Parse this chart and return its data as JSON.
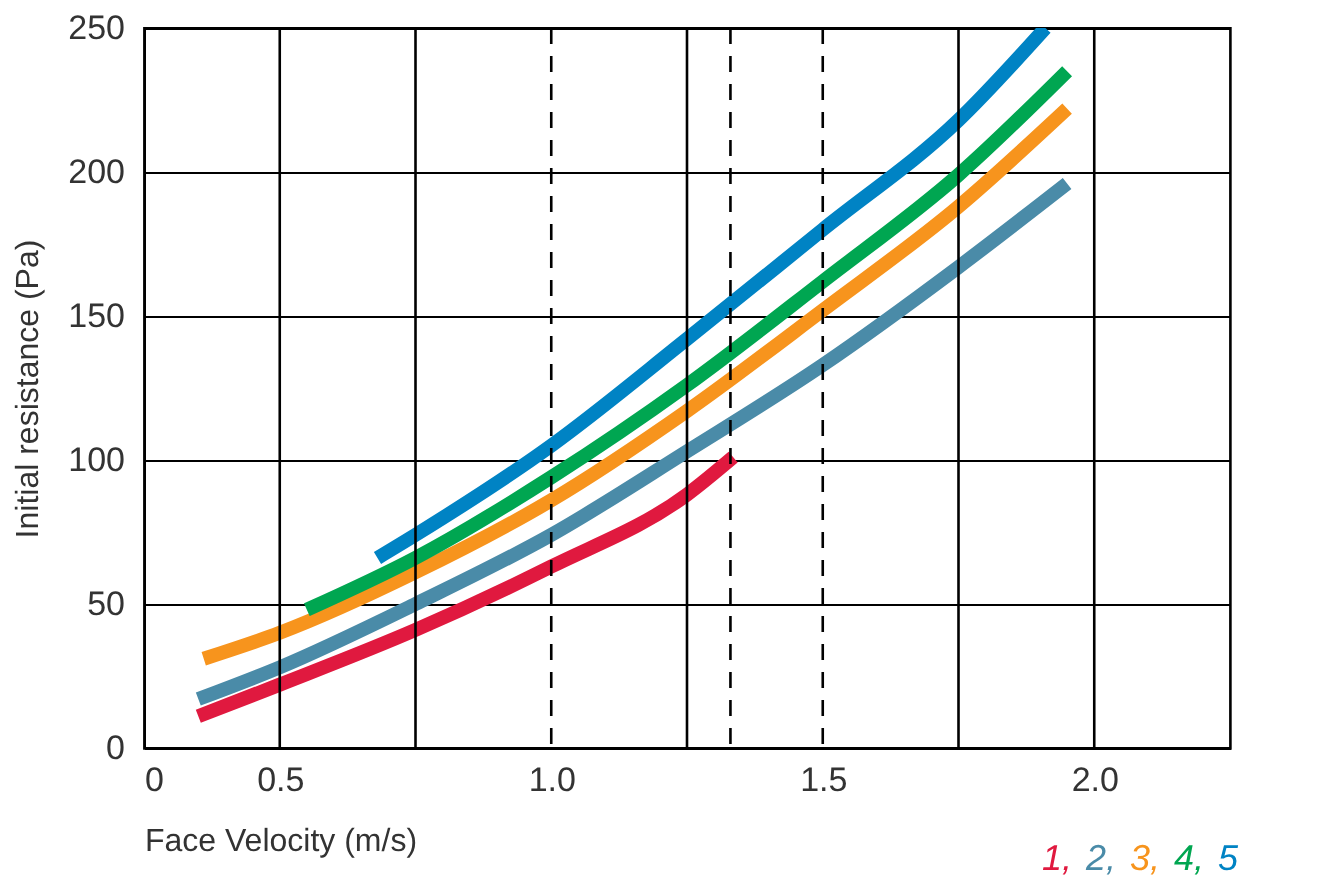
{
  "chart_data": {
    "type": "line",
    "xlabel": "Face Velocity (m/s)",
    "ylabel": "Initial resistance (Pa)",
    "xlim": [
      0.25,
      2.25
    ],
    "xticks": [
      {
        "value": 0.25,
        "label": "0"
      },
      0.5,
      {
        "value": 1,
        "label": "1.0"
      },
      1.5,
      {
        "value": 2,
        "label": "2.0"
      }
    ],
    "ylim": [
      0,
      250
    ],
    "yticks": [
      0,
      50,
      100,
      150,
      200,
      250
    ],
    "grid": "y",
    "legend": "bottom right",
    "line_style": "solid",
    "marker": "none",
    "ref_lines": [
      {
        "axis": "x",
        "value": 0.5,
        "line_style": "solid"
      },
      {
        "axis": "x",
        "value": 0.75,
        "line_style": "solid"
      },
      {
        "axis": "x",
        "value": 1.0,
        "line_style": "dashed"
      },
      {
        "axis": "x",
        "value": 1.25,
        "line_style": "solid"
      },
      {
        "axis": "x",
        "value": 1.33,
        "line_style": "dashed"
      },
      {
        "axis": "x",
        "value": 1.5,
        "line_style": "dashed"
      },
      {
        "axis": "x",
        "value": 1.75,
        "line_style": "solid"
      },
      {
        "axis": "x",
        "value": 2.0,
        "line_style": "solid"
      }
    ],
    "series": [
      {
        "name": "1,",
        "color": "#e0193f",
        "x": [
          0.35,
          0.5,
          0.75,
          1.0,
          1.25,
          1.335
        ],
        "values": [
          11,
          22,
          41,
          63,
          88,
          101
        ]
      },
      {
        "name": "2,",
        "color": "#4a8ba8",
        "x": [
          0.35,
          0.5,
          0.75,
          1.0,
          1.25,
          1.5,
          1.75,
          1.95
        ],
        "values": [
          17,
          28,
          50,
          74,
          103,
          133,
          167,
          196
        ]
      },
      {
        "name": "3,",
        "color": "#f7941d",
        "x": [
          0.36,
          0.5,
          0.75,
          1.0,
          1.25,
          1.5,
          1.75,
          1.95
        ],
        "values": [
          31,
          40,
          61,
          86,
          117,
          152,
          188,
          222
        ]
      },
      {
        "name": "4,",
        "color": "#00a651",
        "x": [
          0.55,
          0.75,
          1.0,
          1.25,
          1.5,
          1.75,
          1.95
        ],
        "values": [
          48,
          66,
          94,
          126,
          162,
          199,
          235
        ]
      },
      {
        "name": "5",
        "color": "#0083c4",
        "x": [
          0.68,
          0.75,
          1.0,
          1.25,
          1.5,
          1.75,
          1.91
        ],
        "values": [
          66,
          74,
          105,
          142,
          180,
          218,
          250
        ]
      }
    ]
  }
}
